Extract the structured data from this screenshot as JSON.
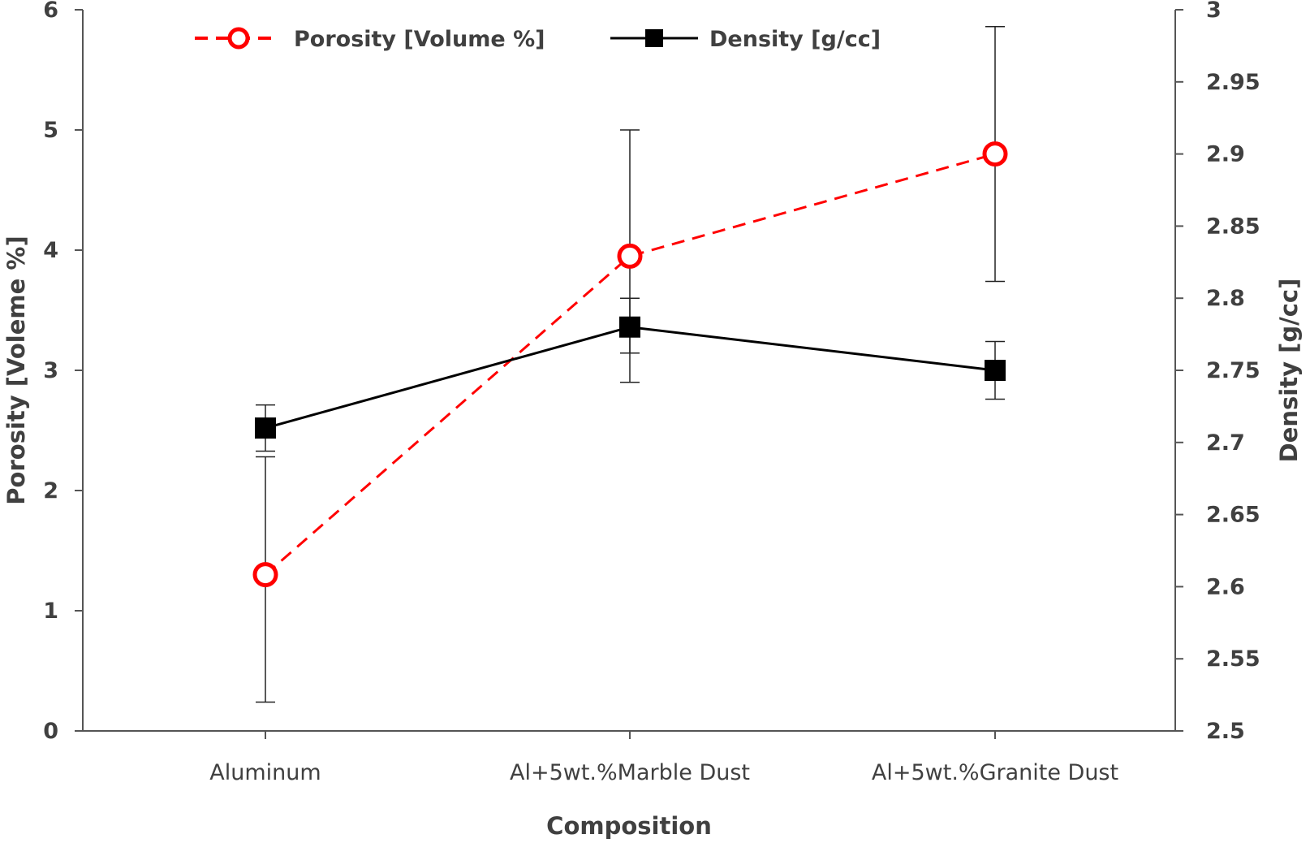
{
  "chart_data": {
    "type": "line",
    "categories": [
      "Aluminum",
      "Al+5wt.%Marble Dust",
      "Al+5wt.%Granite Dust"
    ],
    "xlabel": "Composition",
    "ylabel_left": "Porosity [Voleme %]",
    "ylabel_right": "Density [g/cc]",
    "y_left": {
      "range": [
        0,
        6
      ],
      "ticks": [
        "0",
        "1",
        "2",
        "3",
        "4",
        "5",
        "6"
      ]
    },
    "y_right": {
      "range": [
        2.5,
        3.0
      ],
      "ticks": [
        "2.5",
        "2.55",
        "2.6",
        "2.65",
        "2.7",
        "2.75",
        "2.8",
        "2.85",
        "2.9",
        "2.95",
        "3"
      ]
    },
    "grid": false,
    "legend": {
      "position": "top"
    },
    "series": [
      {
        "name": "Porosity [Volume %]",
        "axis": "left",
        "values": [
          1.3,
          3.95,
          4.8
        ],
        "error_low": [
          0.24,
          2.9,
          3.74
        ],
        "error_high": [
          2.28,
          5.0,
          5.86
        ],
        "color": "#ff0000",
        "line": "dashed",
        "marker": "open-circle"
      },
      {
        "name": "Density [g/cc]",
        "axis": "right",
        "values": [
          2.71,
          2.78,
          2.75
        ],
        "error_low": [
          2.694,
          2.762,
          2.73
        ],
        "error_high": [
          2.726,
          2.8,
          2.77
        ],
        "color": "#000000",
        "line": "solid",
        "marker": "filled-square"
      }
    ]
  }
}
